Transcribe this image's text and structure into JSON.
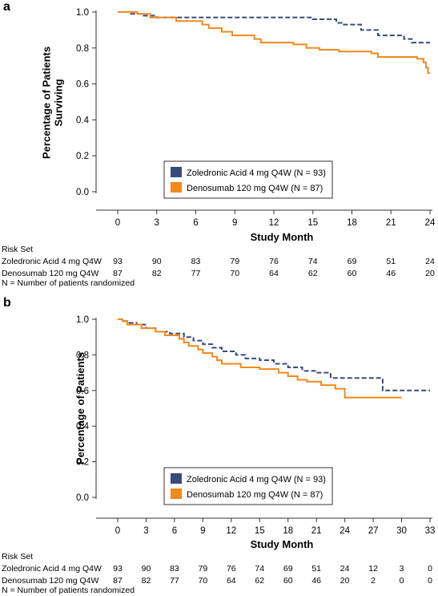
{
  "figure": {
    "footnote": "N = Number of patients randomized",
    "risk_set_label": "Risk Set",
    "xlabel": "Study Month"
  },
  "colors": {
    "zoledronic": "#3b4a7a",
    "denosumab": "#ef8a1c"
  },
  "chart_data": [
    {
      "type": "line",
      "panel_label": "a",
      "ylabel_lines": [
        "Percentage of Patients",
        "Surviving"
      ],
      "xlabel": "Study Month",
      "xlim": [
        0,
        24
      ],
      "ylim": [
        0,
        1
      ],
      "x_ticks": [
        "0",
        "3",
        "6",
        "9",
        "12",
        "15",
        "18",
        "21",
        "24"
      ],
      "y_ticks": [
        "0.0",
        "0.2",
        "0.4",
        "0.6",
        "0.8",
        "1.0"
      ],
      "series": [
        {
          "name": "Zoledronic Acid 4 mg Q4W (N = 93)",
          "style": "dashed",
          "color": "#3b4a7a",
          "steps": [
            [
              0,
              1.0
            ],
            [
              1.0,
              0.99
            ],
            [
              2.0,
              0.98
            ],
            [
              3.0,
              0.97
            ],
            [
              15.0,
              0.96
            ],
            [
              16.8,
              0.94
            ],
            [
              17.3,
              0.93
            ],
            [
              18.7,
              0.9
            ],
            [
              20.0,
              0.87
            ],
            [
              22.0,
              0.85
            ],
            [
              22.6,
              0.83
            ],
            [
              24.0,
              0.83
            ]
          ],
          "risk_row_label": "Zoledronic Acid 4 mg Q4W",
          "risk": [
            "93",
            "90",
            "83",
            "79",
            "76",
            "74",
            "69",
            "51",
            "24"
          ]
        },
        {
          "name": "Denosumab 120 mg Q4W (N = 87)",
          "style": "solid",
          "color": "#ef8a1c",
          "steps": [
            [
              0,
              1.0
            ],
            [
              1.5,
              0.99
            ],
            [
              2.5,
              0.97
            ],
            [
              4.5,
              0.95
            ],
            [
              6.5,
              0.93
            ],
            [
              7.0,
              0.91
            ],
            [
              8.0,
              0.89
            ],
            [
              8.8,
              0.87
            ],
            [
              10.5,
              0.85
            ],
            [
              11.0,
              0.83
            ],
            [
              13.5,
              0.82
            ],
            [
              14.5,
              0.8
            ],
            [
              15.5,
              0.79
            ],
            [
              17.0,
              0.78
            ],
            [
              19.5,
              0.77
            ],
            [
              20.0,
              0.75
            ],
            [
              23.0,
              0.74
            ],
            [
              23.5,
              0.72
            ],
            [
              23.7,
              0.69
            ],
            [
              23.85,
              0.66
            ],
            [
              24.0,
              0.66
            ]
          ],
          "risk_row_label": "Denosumab 120 mg Q4W",
          "risk": [
            "87",
            "82",
            "77",
            "70",
            "64",
            "62",
            "60",
            "46",
            "20"
          ]
        }
      ],
      "legend_position": "lower-center"
    },
    {
      "type": "line",
      "panel_label": "b",
      "ylabel_lines": [
        "Percentage of Patients"
      ],
      "xlabel": "Study Month",
      "xlim": [
        0,
        33
      ],
      "ylim": [
        0,
        1
      ],
      "x_ticks": [
        "0",
        "3",
        "6",
        "9",
        "12",
        "15",
        "18",
        "21",
        "24",
        "27",
        "30",
        "33"
      ],
      "y_ticks": [
        "0.0",
        "0.2",
        "0.4",
        "0.6",
        "0.8",
        "1.0"
      ],
      "series": [
        {
          "name": "Zoledronic Acid 4 mg Q4W (N = 93)",
          "style": "dashed",
          "color": "#3b4a7a",
          "steps": [
            [
              0,
              1.0
            ],
            [
              0.5,
              0.99
            ],
            [
              1.0,
              0.98
            ],
            [
              2.0,
              0.97
            ],
            [
              3.0,
              0.95
            ],
            [
              4.0,
              0.93
            ],
            [
              5.5,
              0.92
            ],
            [
              7.0,
              0.9
            ],
            [
              8.0,
              0.88
            ],
            [
              9.0,
              0.86
            ],
            [
              10.0,
              0.84
            ],
            [
              11.0,
              0.82
            ],
            [
              12.5,
              0.8
            ],
            [
              13.5,
              0.78
            ],
            [
              15.0,
              0.77
            ],
            [
              16.5,
              0.75
            ],
            [
              18.0,
              0.73
            ],
            [
              19.5,
              0.71
            ],
            [
              21.0,
              0.7
            ],
            [
              22.5,
              0.67
            ],
            [
              28.0,
              0.6
            ],
            [
              33.0,
              0.6
            ]
          ],
          "risk_row_label": "Zoledronic Acid 4 mg Q4W",
          "risk": [
            "93",
            "90",
            "83",
            "79",
            "76",
            "74",
            "69",
            "51",
            "24",
            "12",
            "3",
            "0"
          ]
        },
        {
          "name": "Denosumab 120 mg Q4W (N = 87)",
          "style": "solid",
          "color": "#ef8a1c",
          "steps": [
            [
              0,
              1.0
            ],
            [
              0.5,
              0.99
            ],
            [
              1.0,
              0.97
            ],
            [
              2.5,
              0.95
            ],
            [
              4.0,
              0.93
            ],
            [
              5.0,
              0.91
            ],
            [
              6.5,
              0.89
            ],
            [
              7.0,
              0.87
            ],
            [
              7.5,
              0.85
            ],
            [
              8.5,
              0.83
            ],
            [
              9.0,
              0.81
            ],
            [
              10.0,
              0.79
            ],
            [
              10.5,
              0.77
            ],
            [
              11.0,
              0.75
            ],
            [
              13.0,
              0.73
            ],
            [
              15.0,
              0.72
            ],
            [
              17.0,
              0.7
            ],
            [
              18.0,
              0.68
            ],
            [
              19.0,
              0.66
            ],
            [
              20.0,
              0.65
            ],
            [
              21.5,
              0.63
            ],
            [
              23.0,
              0.61
            ],
            [
              24.0,
              0.56
            ],
            [
              30.0,
              0.56
            ]
          ],
          "risk_row_label": "Denosumab 120 mg Q4W",
          "risk": [
            "87",
            "82",
            "77",
            "70",
            "64",
            "62",
            "60",
            "46",
            "20",
            "2",
            "0",
            "0"
          ]
        }
      ],
      "legend_position": "lower-center"
    }
  ]
}
